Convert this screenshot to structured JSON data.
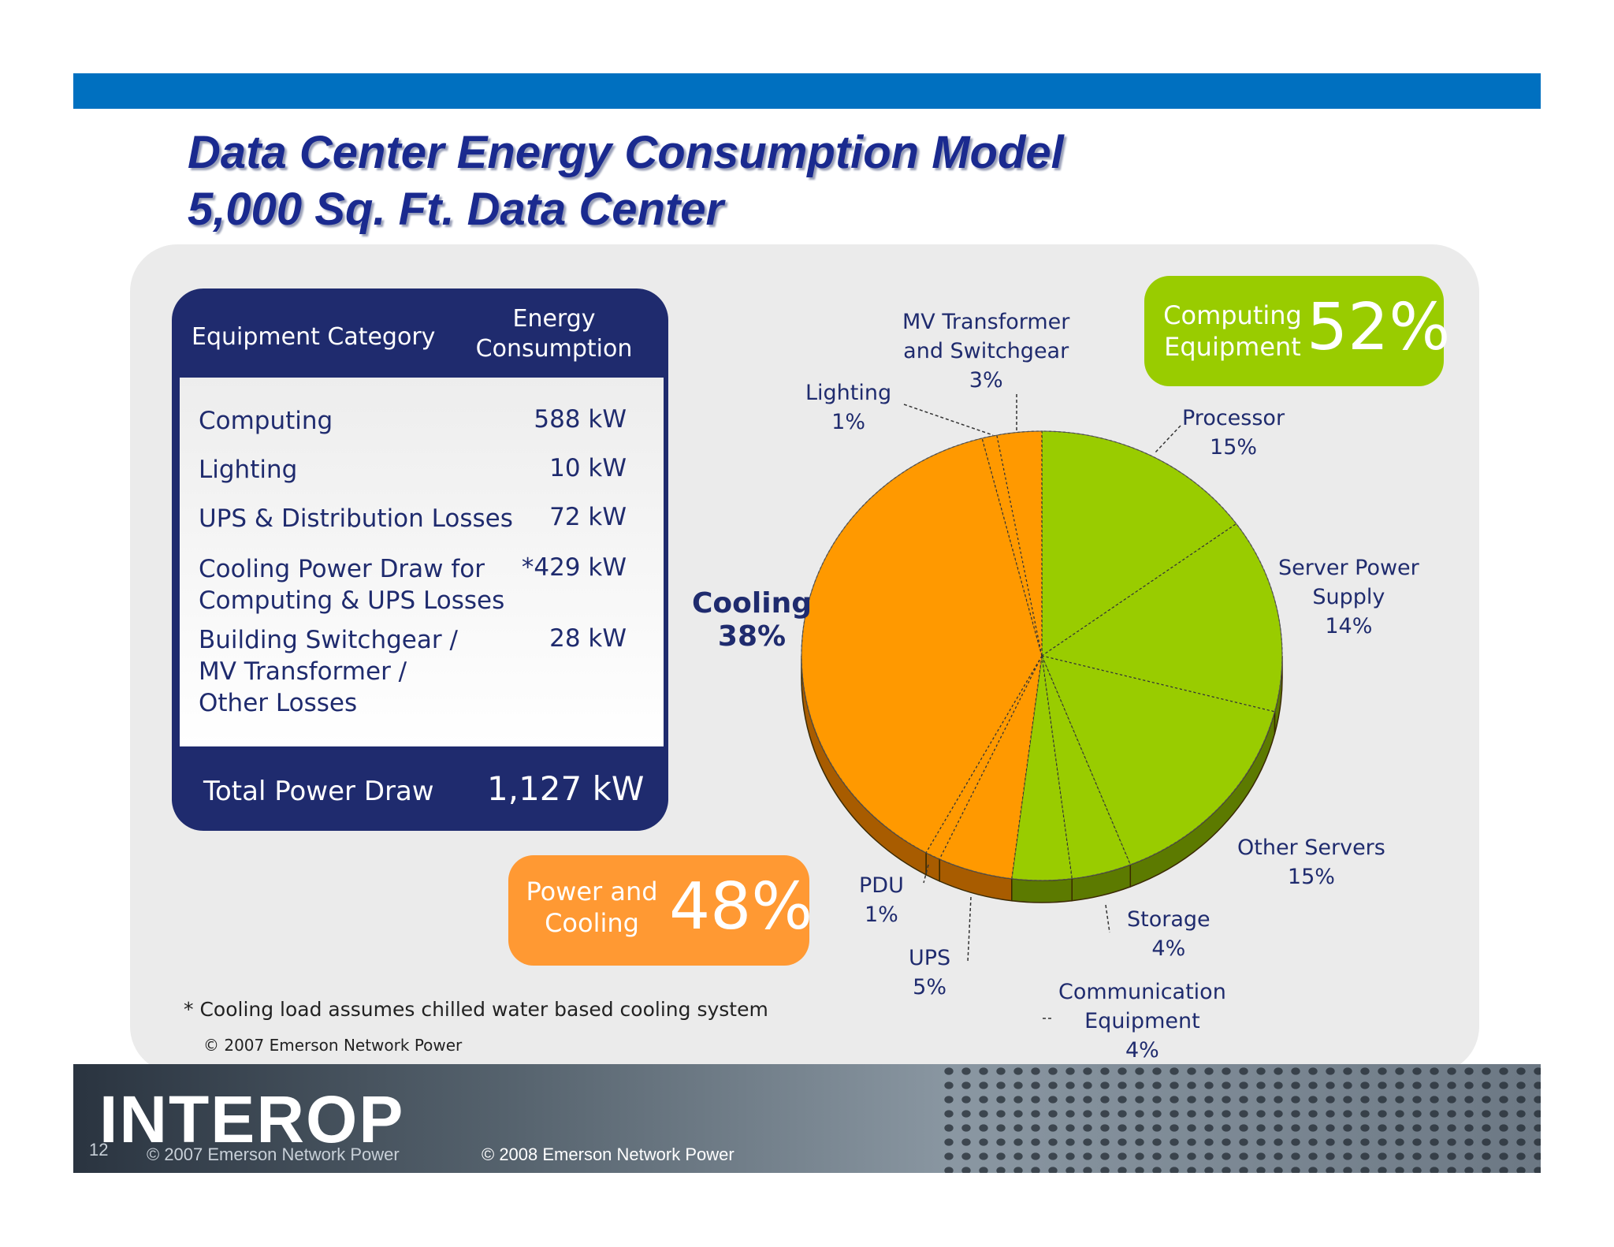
{
  "title": {
    "line1": "Data Center Energy Consumption Model",
    "line2": "5,000 Sq. Ft. Data Center"
  },
  "table": {
    "header_category": "Equipment Category",
    "header_energy_line1": "Energy",
    "header_energy_line2": "Consumption",
    "rows": [
      {
        "line1": "Computing",
        "line2": "",
        "line3": "",
        "value": "588 kW"
      },
      {
        "line1": "Lighting",
        "line2": "",
        "line3": "",
        "value": "10 kW"
      },
      {
        "line1": "UPS & Distribution Losses",
        "line2": "",
        "line3": "",
        "value": "72 kW"
      },
      {
        "line1": "Cooling Power Draw for",
        "line2": "Computing & UPS Losses",
        "line3": "",
        "value": "*429 kW"
      },
      {
        "line1": "Building Switchgear /",
        "line2": "MV Transformer /",
        "line3": "Other Losses",
        "value": "28 kW"
      }
    ],
    "total_label": "Total Power Draw",
    "total_value": "1,127 kW"
  },
  "boxes": {
    "computing": {
      "line1": "Computing",
      "line2": "Equipment",
      "pct": "52%",
      "color": "#99cc00"
    },
    "power": {
      "line1": "Power and",
      "line2": "Cooling",
      "pct": "48%",
      "color": "#ff9933"
    }
  },
  "cooling_label": {
    "line1": "Cooling",
    "line2": "38%"
  },
  "chart_data": {
    "type": "pie",
    "slices": [
      {
        "name": "Processor",
        "value": 15,
        "label1": "Processor",
        "label2": "",
        "pct_label": "15%",
        "color": "#99cc00"
      },
      {
        "name": "Server Power Supply",
        "value": 14,
        "label1": "Server Power",
        "label2": "Supply",
        "pct_label": "14%",
        "color": "#99cc00"
      },
      {
        "name": "Other Servers",
        "value": 15,
        "label1": "Other Servers",
        "label2": "",
        "pct_label": "15%",
        "color": "#99cc00"
      },
      {
        "name": "Storage",
        "value": 4,
        "label1": "Storage",
        "label2": "",
        "pct_label": "4%",
        "color": "#99cc00"
      },
      {
        "name": "Communication Equipment",
        "value": 4,
        "label1": "Communication",
        "label2": "Equipment",
        "pct_label": "4%",
        "color": "#99cc00"
      },
      {
        "name": "UPS",
        "value": 5,
        "label1": "UPS",
        "label2": "",
        "pct_label": "5%",
        "color": "#ff9900"
      },
      {
        "name": "PDU",
        "value": 1,
        "label1": "PDU",
        "label2": "",
        "pct_label": "1%",
        "color": "#ff9900"
      },
      {
        "name": "Cooling",
        "value": 38,
        "label1": "Cooling",
        "label2": "",
        "pct_label": "38%",
        "color": "#ff9900"
      },
      {
        "name": "Lighting",
        "value": 1,
        "label1": "Lighting",
        "label2": "",
        "pct_label": "1%",
        "color": "#ff9900"
      },
      {
        "name": "MV Transformer and Switchgear",
        "value": 3,
        "label1": "MV Transformer",
        "label2": "and Switchgear",
        "pct_label": "3%",
        "color": "#ff9900"
      }
    ]
  },
  "footnote": "* Cooling load assumes chilled water based cooling system",
  "copyright_small": "© 2007 Emerson Network Power",
  "footer": {
    "logo": "INTEROP",
    "page": "12",
    "copy1": "© 2007 Emerson Network Power",
    "copy2": "© 2008 Emerson Network Power"
  }
}
